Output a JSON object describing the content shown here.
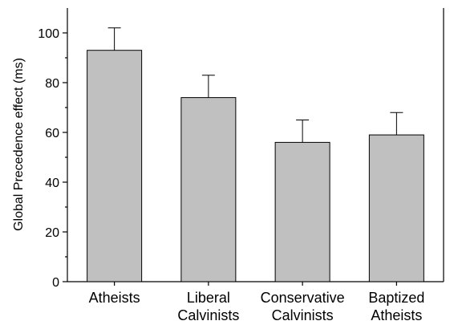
{
  "chart_data": {
    "type": "bar",
    "title": "",
    "xlabel": "",
    "ylabel": "Global Precedence effect (ms)",
    "ylim": [
      0,
      110
    ],
    "yticks": [
      0,
      20,
      40,
      60,
      80,
      100
    ],
    "grid": false,
    "categories": [
      [
        "Atheists"
      ],
      [
        "Liberal",
        "Calvinists"
      ],
      [
        "Conservative",
        "Calvinists"
      ],
      [
        "Baptized",
        "Atheists"
      ]
    ],
    "values": [
      93,
      74,
      56,
      59
    ],
    "error_upper": [
      102,
      83,
      65,
      68
    ],
    "colors": {
      "bar_fill": "#c0c0c0",
      "bar_stroke": "#000000",
      "axis": "#000000"
    }
  }
}
